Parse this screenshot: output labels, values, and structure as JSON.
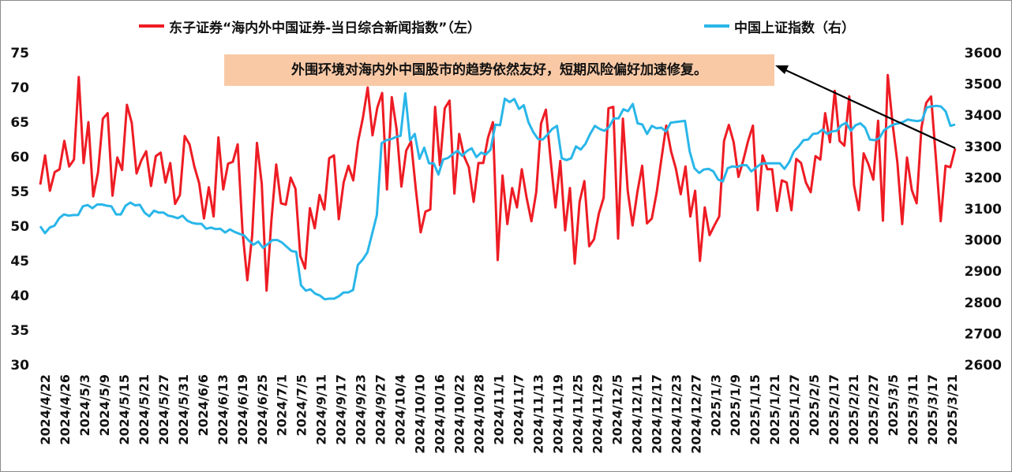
{
  "colors": {
    "red_series": "#ee1c24",
    "blue_series": "#29b6e9",
    "annotation_bg": "#f9c9a6",
    "arrow": "#000000"
  },
  "legend": {
    "red": "东子证券“海内外中国证券-当日综合新闻指数”（左）",
    "blue": "中国上证指数（右）"
  },
  "annotation": "外围环境对海内外中国股市的趋势依然友好，短期风险偏好加速修复。",
  "chart_data": {
    "type": "line",
    "x_tick_labels": [
      "2024/4/22",
      "2024/4/26",
      "2024/5/3",
      "2024/5/9",
      "2024/5/15",
      "2024/5/21",
      "2024/5/27",
      "2024/5/31",
      "2024/6/6",
      "2024/6/13",
      "2024/6/19",
      "2024/6/25",
      "2024/7/1",
      "2024/7/5",
      "2024/9/11",
      "2024/9/17",
      "2024/9/23",
      "2024/9/27",
      "2024/10/4",
      "2024/10/10",
      "2024/10/16",
      "2024/10/22",
      "2024/10/28",
      "2024/11/1",
      "2024/11/7",
      "2024/11/13",
      "2024/11/19",
      "2024/11/25",
      "2024/11/29",
      "2024/12/5",
      "2024/12/11",
      "2024/12/17",
      "2024/12/23",
      "2024/12/27",
      "2025/1/3",
      "2025/1/9",
      "2025/1/15",
      "2025/1/21",
      "2025/1/27",
      "2025/2/5",
      "2025/2/17",
      "2025/2/21",
      "2025/2/27",
      "2025/3/5",
      "2025/3/11",
      "2025/3/17",
      "2025/3/21"
    ],
    "y_left": {
      "min": 30,
      "max": 75,
      "ticks": [
        30,
        35,
        40,
        45,
        50,
        55,
        60,
        65,
        70,
        75
      ]
    },
    "y_right": {
      "min": 2600,
      "max": 3600,
      "ticks": [
        2600,
        2700,
        2800,
        2900,
        3000,
        3100,
        3200,
        3300,
        3400,
        3500,
        3600
      ]
    },
    "series": [
      {
        "name": "东子证券“海内外中国证券-当日综合新闻指数”（左）",
        "axis": "left",
        "values": [
          56,
          60.2,
          55.1,
          57.8,
          58.2,
          62.3,
          58.6,
          59.6,
          71.5,
          59.1,
          65,
          54.3,
          57.8,
          65.5,
          66.3,
          54.4,
          59.9,
          58.1,
          67.5,
          64.9,
          57.6,
          59.5,
          60.8,
          55.8,
          60.1,
          60.6,
          56.3,
          59.1,
          53.2,
          54.5,
          63,
          61.8,
          58.6,
          56.2,
          51.1,
          55.6,
          51.4,
          62.8,
          55.3,
          59,
          59.3,
          61.8,
          49.3,
          42.2,
          48.6,
          62,
          56.1,
          40.7,
          50.8,
          58.9,
          53.3,
          53.1,
          57,
          55.4,
          45.7,
          43.9,
          52.6,
          49.7,
          54.5,
          52.4,
          59.8,
          60.2,
          51,
          56.3,
          58.7,
          56.6,
          62.2,
          65.6,
          70,
          63.1,
          67.1,
          69.2,
          55.3,
          68.6,
          64,
          55.7,
          60.9,
          62.2,
          55.3,
          49.1,
          52.1,
          52.4,
          67.2,
          58.8,
          67,
          68.1,
          54.7,
          63.3,
          60.1,
          58.5,
          53.5,
          59.1,
          59.1,
          62.8,
          65,
          45.1,
          57.3,
          50.3,
          55.5,
          52.7,
          58.2,
          54.1,
          50.7,
          54.9,
          64.8,
          66.8,
          59.5,
          52.7,
          59.4,
          49.4,
          55.5,
          44.6,
          53.5,
          56.5,
          47.1,
          48.1,
          51.8,
          54.1,
          67,
          67.2,
          48.2,
          65.5,
          55.1,
          50.1,
          54.9,
          58.7,
          50.4,
          51.1,
          54.8,
          59.7,
          64.5,
          60.8,
          58.3,
          54.6,
          58.6,
          51.4,
          55.1,
          45,
          52.7,
          48.7,
          50.1,
          51.4,
          62.3,
          64.6,
          62.1,
          57.1,
          59.5,
          62.3,
          64.5,
          52.3,
          60.2,
          58.2,
          58.2,
          52.2,
          56.6,
          56.3,
          52.3,
          59.7,
          59.1,
          56.3,
          54.9,
          60.1,
          59.6,
          66.3,
          62.1,
          69.5,
          62.3,
          61.6,
          68.7,
          55.9,
          52.3,
          60.5,
          58.9,
          56.7,
          65.2,
          50.8,
          71.8,
          64.8,
          59.2,
          50.3,
          59.9,
          55.2,
          53.3,
          64.2,
          67.8,
          68.7,
          59.8,
          50.7,
          58.7,
          58.5,
          61.2
        ]
      },
      {
        "name": "中国上证指数（右）",
        "axis": "right",
        "values": [
          3044,
          3022,
          3040,
          3046,
          3070,
          3082,
          3078,
          3080,
          3080,
          3108,
          3112,
          3102,
          3114,
          3114,
          3110,
          3108,
          3082,
          3082,
          3110,
          3120,
          3111,
          3113,
          3088,
          3076,
          3094,
          3088,
          3088,
          3078,
          3075,
          3070,
          3078,
          3062,
          3055,
          3052,
          3052,
          3036,
          3040,
          3035,
          3036,
          3024,
          3034,
          3026,
          3020,
          3015,
          2998,
          2985,
          2995,
          2975,
          2987,
          3000,
          3000,
          2992,
          2978,
          2965,
          2962,
          2855,
          2838,
          2842,
          2828,
          2822,
          2810,
          2812,
          2812,
          2820,
          2832,
          2832,
          2840,
          2920,
          2937,
          2960,
          3020,
          3080,
          3310,
          3320,
          3323,
          3330,
          3334,
          3470,
          3320,
          3340,
          3260,
          3296,
          3246,
          3246,
          3210,
          3258,
          3263,
          3275,
          3286,
          3270,
          3285,
          3294,
          3266,
          3280,
          3274,
          3290,
          3370,
          3368,
          3453,
          3442,
          3452,
          3420,
          3432,
          3377,
          3346,
          3324,
          3322,
          3338,
          3356,
          3366,
          3262,
          3256,
          3262,
          3300,
          3290,
          3308,
          3340,
          3366,
          3356,
          3350,
          3362,
          3390,
          3390,
          3419,
          3413,
          3436,
          3374,
          3370,
          3340,
          3366,
          3358,
          3360,
          3348,
          3376,
          3378,
          3380,
          3382,
          3284,
          3230,
          3215,
          3226,
          3228,
          3220,
          3194,
          3188,
          3230,
          3236,
          3234,
          3240,
          3240,
          3220,
          3232,
          3244,
          3246,
          3246,
          3246,
          3246,
          3228,
          3250,
          3284,
          3300,
          3320,
          3322,
          3340,
          3342,
          3354,
          3340,
          3348,
          3350,
          3368,
          3376,
          3350,
          3368,
          3374,
          3360,
          3322,
          3320,
          3326,
          3352,
          3362,
          3370,
          3374,
          3378,
          3386,
          3383,
          3381,
          3384,
          3425,
          3428,
          3430,
          3428,
          3412,
          3366,
          3370
        ]
      }
    ],
    "grid": false,
    "legend_position": "top"
  }
}
